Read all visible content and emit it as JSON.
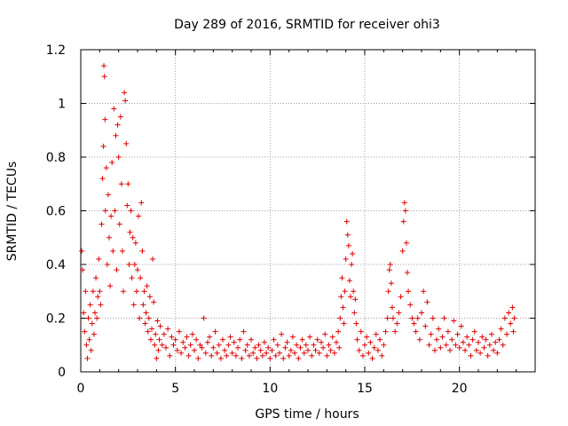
{
  "chart_data": {
    "type": "scatter",
    "title": "Day 289 of 2016, SRMTID for receiver ohi3",
    "xlabel": "GPS time / hours",
    "ylabel": "SRMTID / TECUs",
    "xlim": [
      0,
      24
    ],
    "ylim": [
      0,
      1.2
    ],
    "xticks": [
      0,
      5,
      10,
      15,
      20
    ],
    "yticks": [
      0,
      0.2,
      0.4,
      0.6,
      0.8,
      1,
      1.2
    ],
    "xtick_labels": [
      "0",
      "5",
      "10",
      "15",
      "20"
    ],
    "ytick_labels": [
      "0",
      "0.2",
      "0.4",
      "0.6",
      "0.8",
      "1",
      "1.2"
    ],
    "grid": true,
    "marker": "+",
    "series_color": "#e00000",
    "series": [
      {
        "name": "SRMTID",
        "points": [
          [
            0.05,
            0.45
          ],
          [
            0.1,
            0.38
          ],
          [
            0.15,
            0.22
          ],
          [
            0.2,
            0.15
          ],
          [
            0.25,
            0.3
          ],
          [
            0.3,
            0.1
          ],
          [
            0.35,
            0.05
          ],
          [
            0.4,
            0.2
          ],
          [
            0.45,
            0.12
          ],
          [
            0.5,
            0.25
          ],
          [
            0.55,
            0.08
          ],
          [
            0.6,
            0.18
          ],
          [
            0.65,
            0.3
          ],
          [
            0.7,
            0.14
          ],
          [
            0.75,
            0.22
          ],
          [
            0.8,
            0.35
          ],
          [
            0.85,
            0.2
          ],
          [
            0.9,
            0.28
          ],
          [
            0.95,
            0.42
          ],
          [
            1.0,
            0.3
          ],
          [
            1.05,
            0.25
          ],
          [
            1.1,
            0.55
          ],
          [
            1.15,
            0.72
          ],
          [
            1.2,
            0.84
          ],
          [
            1.22,
            1.14
          ],
          [
            1.25,
            1.1
          ],
          [
            1.28,
            0.94
          ],
          [
            1.3,
            0.6
          ],
          [
            1.35,
            0.76
          ],
          [
            1.4,
            0.4
          ],
          [
            1.45,
            0.66
          ],
          [
            1.5,
            0.5
          ],
          [
            1.55,
            0.32
          ],
          [
            1.6,
            0.58
          ],
          [
            1.65,
            0.78
          ],
          [
            1.7,
            0.45
          ],
          [
            1.75,
            0.98
          ],
          [
            1.8,
            0.6
          ],
          [
            1.85,
            0.88
          ],
          [
            1.9,
            0.38
          ],
          [
            1.95,
            0.92
          ],
          [
            2.0,
            0.8
          ],
          [
            2.05,
            0.55
          ],
          [
            2.1,
            0.95
          ],
          [
            2.15,
            0.7
          ],
          [
            2.2,
            0.45
          ],
          [
            2.25,
            0.3
          ],
          [
            2.3,
            1.04
          ],
          [
            2.35,
            1.01
          ],
          [
            2.4,
            0.85
          ],
          [
            2.45,
            0.62
          ],
          [
            2.5,
            0.7
          ],
          [
            2.55,
            0.4
          ],
          [
            2.6,
            0.52
          ],
          [
            2.65,
            0.6
          ],
          [
            2.7,
            0.35
          ],
          [
            2.75,
            0.5
          ],
          [
            2.8,
            0.25
          ],
          [
            2.85,
            0.4
          ],
          [
            2.9,
            0.48
          ],
          [
            2.95,
            0.3
          ],
          [
            3.0,
            0.38
          ],
          [
            3.05,
            0.58
          ],
          [
            3.1,
            0.2
          ],
          [
            3.15,
            0.35
          ],
          [
            3.2,
            0.63
          ],
          [
            3.25,
            0.45
          ],
          [
            3.3,
            0.25
          ],
          [
            3.35,
            0.3
          ],
          [
            3.4,
            0.18
          ],
          [
            3.45,
            0.22
          ],
          [
            3.5,
            0.32
          ],
          [
            3.55,
            0.15
          ],
          [
            3.6,
            0.2
          ],
          [
            3.65,
            0.28
          ],
          [
            3.7,
            0.12
          ],
          [
            3.75,
            0.16
          ],
          [
            3.8,
            0.42
          ],
          [
            3.85,
            0.26
          ],
          [
            3.9,
            0.1
          ],
          [
            3.95,
            0.14
          ],
          [
            4.0,
            0.05
          ],
          [
            4.05,
            0.19
          ],
          [
            4.1,
            0.08
          ],
          [
            4.15,
            0.12
          ],
          [
            4.2,
            0.17
          ],
          [
            4.3,
            0.1
          ],
          [
            4.4,
            0.14
          ],
          [
            4.5,
            0.09
          ],
          [
            4.6,
            0.16
          ],
          [
            4.7,
            0.06
          ],
          [
            4.8,
            0.13
          ],
          [
            4.9,
            0.1
          ],
          [
            5.0,
            0.12
          ],
          [
            5.1,
            0.08
          ],
          [
            5.2,
            0.15
          ],
          [
            5.3,
            0.07
          ],
          [
            5.4,
            0.11
          ],
          [
            5.5,
            0.09
          ],
          [
            5.6,
            0.13
          ],
          [
            5.7,
            0.06
          ],
          [
            5.8,
            0.1
          ],
          [
            5.9,
            0.14
          ],
          [
            6.0,
            0.08
          ],
          [
            6.1,
            0.12
          ],
          [
            6.2,
            0.05
          ],
          [
            6.3,
            0.1
          ],
          [
            6.4,
            0.09
          ],
          [
            6.5,
            0.2
          ],
          [
            6.6,
            0.07
          ],
          [
            6.7,
            0.11
          ],
          [
            6.8,
            0.13
          ],
          [
            6.9,
            0.06
          ],
          [
            7.0,
            0.09
          ],
          [
            7.1,
            0.15
          ],
          [
            7.2,
            0.07
          ],
          [
            7.3,
            0.1
          ],
          [
            7.4,
            0.05
          ],
          [
            7.5,
            0.12
          ],
          [
            7.6,
            0.08
          ],
          [
            7.7,
            0.06
          ],
          [
            7.8,
            0.1
          ],
          [
            7.9,
            0.13
          ],
          [
            8.0,
            0.07
          ],
          [
            8.1,
            0.11
          ],
          [
            8.2,
            0.06
          ],
          [
            8.3,
            0.09
          ],
          [
            8.4,
            0.12
          ],
          [
            8.5,
            0.05
          ],
          [
            8.6,
            0.15
          ],
          [
            8.7,
            0.08
          ],
          [
            8.8,
            0.1
          ],
          [
            8.9,
            0.06
          ],
          [
            9.0,
            0.12
          ],
          [
            9.1,
            0.07
          ],
          [
            9.2,
            0.09
          ],
          [
            9.3,
            0.05
          ],
          [
            9.4,
            0.1
          ],
          [
            9.5,
            0.08
          ],
          [
            9.6,
            0.06
          ],
          [
            9.7,
            0.11
          ],
          [
            9.8,
            0.07
          ],
          [
            9.9,
            0.09
          ],
          [
            10.0,
            0.05
          ],
          [
            10.1,
            0.08
          ],
          [
            10.2,
            0.12
          ],
          [
            10.3,
            0.06
          ],
          [
            10.4,
            0.1
          ],
          [
            10.5,
            0.07
          ],
          [
            10.6,
            0.14
          ],
          [
            10.7,
            0.05
          ],
          [
            10.8,
            0.09
          ],
          [
            10.9,
            0.11
          ],
          [
            11.0,
            0.06
          ],
          [
            11.1,
            0.08
          ],
          [
            11.2,
            0.13
          ],
          [
            11.3,
            0.07
          ],
          [
            11.4,
            0.1
          ],
          [
            11.5,
            0.05
          ],
          [
            11.6,
            0.09
          ],
          [
            11.7,
            0.12
          ],
          [
            11.8,
            0.07
          ],
          [
            11.9,
            0.1
          ],
          [
            12.0,
            0.08
          ],
          [
            12.1,
            0.13
          ],
          [
            12.2,
            0.06
          ],
          [
            12.3,
            0.1
          ],
          [
            12.4,
            0.08
          ],
          [
            12.5,
            0.12
          ],
          [
            12.6,
            0.07
          ],
          [
            12.7,
            0.11
          ],
          [
            12.8,
            0.09
          ],
          [
            12.9,
            0.14
          ],
          [
            13.0,
            0.06
          ],
          [
            13.1,
            0.1
          ],
          [
            13.2,
            0.08
          ],
          [
            13.3,
            0.13
          ],
          [
            13.4,
            0.07
          ],
          [
            13.5,
            0.11
          ],
          [
            13.6,
            0.15
          ],
          [
            13.65,
            0.09
          ],
          [
            13.7,
            0.2
          ],
          [
            13.75,
            0.28
          ],
          [
            13.8,
            0.35
          ],
          [
            13.85,
            0.24
          ],
          [
            13.9,
            0.18
          ],
          [
            13.95,
            0.3
          ],
          [
            14.0,
            0.42
          ],
          [
            14.05,
            0.56
          ],
          [
            14.1,
            0.51
          ],
          [
            14.15,
            0.47
          ],
          [
            14.2,
            0.34
          ],
          [
            14.25,
            0.28
          ],
          [
            14.3,
            0.4
          ],
          [
            14.35,
            0.44
          ],
          [
            14.4,
            0.3
          ],
          [
            14.45,
            0.22
          ],
          [
            14.5,
            0.27
          ],
          [
            14.55,
            0.18
          ],
          [
            14.6,
            0.12
          ],
          [
            14.7,
            0.08
          ],
          [
            14.8,
            0.15
          ],
          [
            14.9,
            0.06
          ],
          [
            15.0,
            0.1
          ],
          [
            15.1,
            0.13
          ],
          [
            15.2,
            0.07
          ],
          [
            15.3,
            0.11
          ],
          [
            15.4,
            0.05
          ],
          [
            15.5,
            0.09
          ],
          [
            15.6,
            0.14
          ],
          [
            15.7,
            0.08
          ],
          [
            15.8,
            0.12
          ],
          [
            15.9,
            0.06
          ],
          [
            16.0,
            0.1
          ],
          [
            16.1,
            0.15
          ],
          [
            16.2,
            0.2
          ],
          [
            16.25,
            0.3
          ],
          [
            16.3,
            0.38
          ],
          [
            16.35,
            0.4
          ],
          [
            16.4,
            0.33
          ],
          [
            16.45,
            0.24
          ],
          [
            16.5,
            0.2
          ],
          [
            16.6,
            0.15
          ],
          [
            16.7,
            0.18
          ],
          [
            16.8,
            0.22
          ],
          [
            16.9,
            0.28
          ],
          [
            17.0,
            0.45
          ],
          [
            17.05,
            0.56
          ],
          [
            17.1,
            0.63
          ],
          [
            17.15,
            0.6
          ],
          [
            17.2,
            0.48
          ],
          [
            17.25,
            0.37
          ],
          [
            17.3,
            0.3
          ],
          [
            17.4,
            0.25
          ],
          [
            17.5,
            0.2
          ],
          [
            17.6,
            0.18
          ],
          [
            17.7,
            0.15
          ],
          [
            17.8,
            0.2
          ],
          [
            17.9,
            0.12
          ],
          [
            18.0,
            0.22
          ],
          [
            18.1,
            0.3
          ],
          [
            18.2,
            0.17
          ],
          [
            18.3,
            0.26
          ],
          [
            18.4,
            0.1
          ],
          [
            18.5,
            0.14
          ],
          [
            18.6,
            0.2
          ],
          [
            18.7,
            0.08
          ],
          [
            18.8,
            0.12
          ],
          [
            18.9,
            0.16
          ],
          [
            19.0,
            0.09
          ],
          [
            19.1,
            0.13
          ],
          [
            19.2,
            0.2
          ],
          [
            19.3,
            0.1
          ],
          [
            19.4,
            0.15
          ],
          [
            19.5,
            0.08
          ],
          [
            19.6,
            0.12
          ],
          [
            19.7,
            0.19
          ],
          [
            19.8,
            0.1
          ],
          [
            19.9,
            0.14
          ],
          [
            20.0,
            0.09
          ],
          [
            20.1,
            0.17
          ],
          [
            20.2,
            0.11
          ],
          [
            20.3,
            0.08
          ],
          [
            20.4,
            0.13
          ],
          [
            20.5,
            0.1
          ],
          [
            20.6,
            0.06
          ],
          [
            20.7,
            0.12
          ],
          [
            20.8,
            0.15
          ],
          [
            20.9,
            0.08
          ],
          [
            21.0,
            0.11
          ],
          [
            21.1,
            0.07
          ],
          [
            21.2,
            0.13
          ],
          [
            21.3,
            0.09
          ],
          [
            21.4,
            0.12
          ],
          [
            21.5,
            0.06
          ],
          [
            21.6,
            0.1
          ],
          [
            21.7,
            0.14
          ],
          [
            21.8,
            0.08
          ],
          [
            21.9,
            0.11
          ],
          [
            22.0,
            0.07
          ],
          [
            22.1,
            0.12
          ],
          [
            22.2,
            0.16
          ],
          [
            22.3,
            0.1
          ],
          [
            22.4,
            0.2
          ],
          [
            22.5,
            0.14
          ],
          [
            22.6,
            0.22
          ],
          [
            22.7,
            0.18
          ],
          [
            22.8,
            0.24
          ],
          [
            22.85,
            0.15
          ],
          [
            22.9,
            0.2
          ]
        ]
      }
    ]
  }
}
